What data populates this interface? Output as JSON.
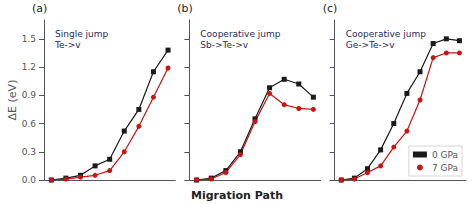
{
  "chart_data": [
    {
      "type": "line",
      "title": "Single jump\nTe->v",
      "annotations": [
        "(a)"
      ],
      "ylabel": "ΔE (eV)",
      "categories": [
        null,
        null,
        null,
        null,
        null,
        null,
        null,
        null,
        null
      ],
      "series": [
        {
          "color": "#1a1a1a",
          "marker": "square",
          "values": [
            0.0,
            0.02,
            0.05,
            0.15,
            0.22,
            0.52,
            0.75,
            1.15,
            1.38
          ]
        },
        {
          "color": "#cc1111",
          "marker": "circle",
          "values": [
            0.0,
            0.01,
            0.03,
            0.05,
            0.1,
            0.3,
            0.57,
            0.88,
            1.19
          ]
        }
      ],
      "ylim": [
        0,
        1.7
      ],
      "yticks": [
        {
          "value": 0,
          "label": "0.0"
        },
        0.3,
        0.6,
        0.9,
        1.2,
        1.5
      ],
      "grid": false,
      "tick_labels": "y"
    },
    {
      "type": "line",
      "title": "Cooperative jump\nSb->Te->v",
      "annotations": [
        "(b)"
      ],
      "xlabel": "Migration Path",
      "categories": [
        null,
        null,
        null,
        null,
        null,
        null,
        null,
        null,
        null
      ],
      "series": [
        {
          "color": "#1a1a1a",
          "marker": "square",
          "values": [
            0.0,
            0.02,
            0.1,
            0.3,
            0.65,
            0.98,
            1.07,
            1.02,
            0.88
          ]
        },
        {
          "color": "#cc1111",
          "marker": "circle",
          "values": [
            0.0,
            0.01,
            0.08,
            0.27,
            0.62,
            0.92,
            0.8,
            0.76,
            0.75
          ]
        }
      ],
      "ylim": [
        0,
        1.7
      ],
      "yticks": [
        {
          "value": 0,
          "label": "0.0"
        },
        0.3,
        0.6,
        0.9,
        1.2,
        1.5
      ],
      "grid": false,
      "tick_labels": false
    },
    {
      "type": "line",
      "title": "Cooperative jump\nGe->Te->v",
      "annotations": [
        "(c)"
      ],
      "categories": [
        null,
        null,
        null,
        null,
        null,
        null,
        null,
        null,
        null,
        null
      ],
      "series": [
        {
          "name": "0 GPa",
          "color": "#1a1a1a",
          "marker": "square",
          "values": [
            0.0,
            0.02,
            0.12,
            0.32,
            0.6,
            0.92,
            1.15,
            1.45,
            1.5,
            1.48
          ]
        },
        {
          "name": "7 GPa",
          "color": "#cc1111",
          "marker": "circle",
          "values": [
            0.0,
            0.01,
            0.08,
            0.15,
            0.35,
            0.52,
            0.85,
            1.3,
            1.35,
            1.35
          ]
        }
      ],
      "ylim": [
        0,
        1.7
      ],
      "yticks": [
        {
          "value": 0,
          "label": "0.0"
        },
        0.3,
        0.6,
        0.9,
        1.2,
        1.5
      ],
      "grid": false,
      "tick_labels": false,
      "legend": "lower right"
    }
  ]
}
